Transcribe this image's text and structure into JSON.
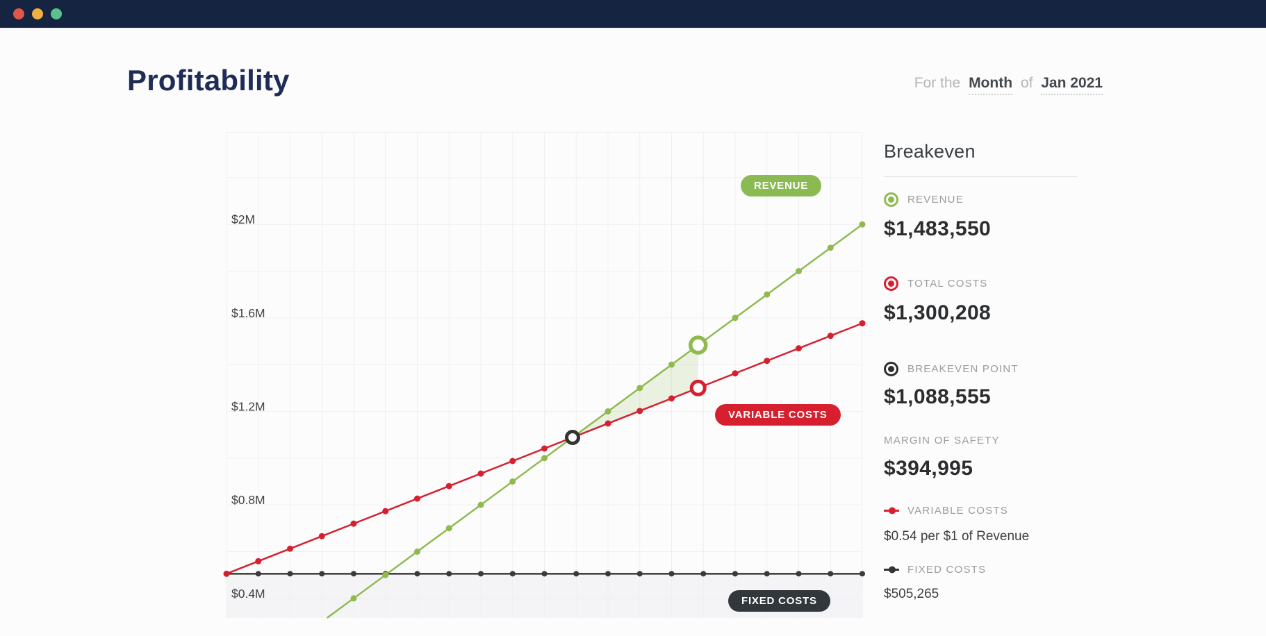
{
  "window": {
    "controls": [
      {
        "icon": "close-circle-icon",
        "color": "#E0564D"
      },
      {
        "icon": "minimize-circle-icon",
        "color": "#EFAF41"
      },
      {
        "icon": "zoom-circle-icon",
        "color": "#5BC18D"
      }
    ],
    "bar_color": "#152441"
  },
  "header": {
    "title": "Profitability"
  },
  "period_selector": {
    "prefix": "For the",
    "period_type": "Month",
    "connector": "of",
    "period_value": "Jan 2021"
  },
  "chart": {
    "y_axis_labels": [
      "$2M",
      "$1.6M",
      "$1.2M",
      "$0.8M",
      "$0.4M"
    ],
    "line_labels": {
      "revenue": "REVENUE",
      "variable_costs": "VARIABLE COSTS",
      "fixed_costs": "FIXED COSTS"
    },
    "colors": {
      "revenue_line": "#8FBA4F",
      "costs_line": "#D7202F",
      "fixed_line": "#3A3A3A",
      "breakeven_marker": "#333333",
      "profit_shade": "rgba(143,186,79,0.16)",
      "below_fixed_band": "#F4F4F6",
      "grid": "#EFEFEF"
    }
  },
  "chart_data": {
    "type": "line",
    "title": "Profitability breakeven chart",
    "grid": true,
    "x_axis": {
      "label": "",
      "revenue_range_usd": [
        0,
        2000000
      ],
      "tick_step_usd": 100000,
      "tick_labels_visible": false
    },
    "y_axis": {
      "tick_labels": [
        "$2M",
        "$1.6M",
        "$1.2M",
        "$0.8M",
        "$0.4M"
      ],
      "tick_values_usd": [
        2000000,
        1600000,
        1200000,
        800000,
        400000
      ],
      "gridline_step_usd": 200000,
      "visible_range_usd": [
        320000,
        2400000
      ]
    },
    "series": [
      {
        "name": "REVENUE",
        "shape": "linear",
        "passes_through": [
          {
            "revenue": 0,
            "value": 0
          },
          {
            "revenue": 2000000,
            "value": 2000000
          }
        ]
      },
      {
        "name": "TOTAL COSTS",
        "shape": "linear",
        "intercept_usd": 505265,
        "variable_rate_per_revenue_dollar": 0.54
      },
      {
        "name": "FIXED COSTS",
        "shape": "constant",
        "value_usd": 505265
      }
    ],
    "highlight_markers": {
      "current_revenue_usd": 1483550,
      "current_total_costs_usd": 1300208,
      "breakeven_point_usd": 1088555
    },
    "fixed_costs_usd": 505265,
    "margin_of_safety_usd": 394995,
    "profit_shade_region": "between revenue and total-costs lines from breakeven point to current revenue"
  },
  "sidebar": {
    "title": "Breakeven",
    "metrics": [
      {
        "label": "REVENUE",
        "value": "$1,483,550",
        "icon": "revenue-dot-icon",
        "color": "#8FBA4F"
      },
      {
        "label": "TOTAL COSTS",
        "value": "$1,300,208",
        "icon": "costs-dot-icon",
        "color": "#D7202F"
      },
      {
        "label": "BREAKEVEN POINT",
        "value": "$1,088,555",
        "icon": "breakeven-dot-icon",
        "color": "#2F2F2F"
      },
      {
        "label": "MARGIN OF SAFETY",
        "value": "$394,995",
        "icon": null
      },
      {
        "label": "VARIABLE COSTS",
        "value": "$0.54 per $1 of Revenue",
        "icon": "line-dot-icon",
        "color": "#D7202F"
      },
      {
        "label": "FIXED COSTS",
        "value": "$505,265",
        "icon": "line-dot-icon",
        "color": "#333333"
      }
    ]
  }
}
